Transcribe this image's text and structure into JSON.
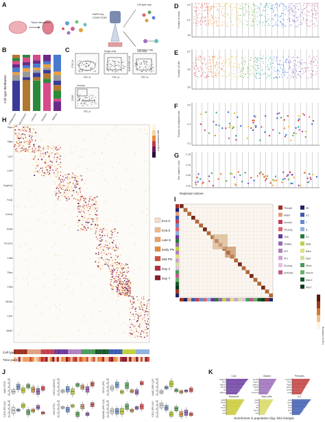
{
  "panels": {
    "A": {
      "label": "A",
      "annotations": [
        "Tissue dissociation",
        "MARS-seq",
        "CD45+/CD45−",
        "Cell-type map",
        "Interaction map"
      ]
    },
    "B": {
      "label": "B",
      "ylabel": "Cell type distribution",
      "categories": [
        "Collagenase",
        "Cold protease",
        "Liberase",
        "Elastase",
        "Miltenyi"
      ],
      "colors": [
        "#b07830",
        "#2a8a3a",
        "#d94a8a",
        "#6a2a8a",
        "#4a7ad0",
        "#f0a040",
        "#9a9a9a",
        "#3a3a9a"
      ]
    },
    "C": {
      "label": "C",
      "gates": [
        "Single cells",
        "Live cells",
        "Immune",
        "Non-immune"
      ],
      "axes": [
        "FSC-A",
        "FSC-W",
        "FSC-A",
        "DAPI/TER-119",
        "FSC-A",
        "CD45",
        "FSC-A"
      ]
    },
    "D": {
      "label": "D",
      "ylabel": "Number of reads",
      "ticks": [
        "10⁵",
        "10⁴",
        "10³"
      ]
    },
    "E": {
      "label": "E",
      "ylabel": "Number of UMI",
      "ticks": [
        "10⁴",
        "10³",
        "10²"
      ]
    },
    "F": {
      "label": "F",
      "ylabel": "Fraction of analyzed cells",
      "ticks": [
        "0.6",
        "0.4",
        "0.2"
      ]
    },
    "G": {
      "label": "G",
      "ylabel": "Est. ambient noise",
      "ticks": [
        "0.18",
        "0.10",
        "0.06",
        "0.02"
      ],
      "xlabel": "Replicate indices"
    },
    "H": {
      "label": "H",
      "colorbar": "Log normalized UMI",
      "row_labels": [
        "Sftpc",
        "Sftpb",
        "Lyz2",
        "Cd74",
        "Scgb1a1",
        "Foxj1",
        "Col1a1",
        "Acta2",
        "Pecam1",
        "Cdh5",
        "Ptprc",
        "Cd3e",
        "Ms4a1",
        "Csf1r",
        "Mki67"
      ],
      "legend_bottom": [
        "Cell type",
        "Time point"
      ]
    },
    "timepoints": [
      {
        "label": "E12.5",
        "color": "#f7dcc8"
      },
      {
        "label": "E16.5",
        "color": "#f2b98a"
      },
      {
        "label": "Late E",
        "color": "#eca060"
      },
      {
        "label": "Early PN",
        "color": "#e88a3a"
      },
      {
        "label": "Mid PN",
        "color": "#d1503a"
      },
      {
        "label": "Day 2",
        "color": "#b32a3a"
      },
      {
        "label": "Day 7",
        "color": "#8a1a2a"
      }
    ],
    "I": {
      "label": "I",
      "colorbar": "Log co-clustering",
      "legend": [
        {
          "label": "Pericyte",
          "color": "#a03020"
        },
        {
          "label": "NK",
          "color": "#222266"
        },
        {
          "label": "Matrix",
          "color": "#e0a080"
        },
        {
          "label": "ILC",
          "color": "#3a5ab0"
        },
        {
          "label": "Smooth",
          "color": "#c04050"
        },
        {
          "label": "T",
          "color": "#6a8ad0"
        },
        {
          "label": "Fib prog",
          "color": "#e06070"
        },
        {
          "label": "B",
          "color": "#90b0e0"
        },
        {
          "label": "Club",
          "color": "#6a3a9a"
        },
        {
          "label": "DC",
          "color": "#2a7a3a"
        },
        {
          "label": "Ciliated",
          "color": "#9a6ab0"
        },
        {
          "label": "Mast",
          "color": "#c0d040"
        },
        {
          "label": "AT2",
          "color": "#b080c0"
        },
        {
          "label": "Baso",
          "color": "#e0e080"
        },
        {
          "label": "AT1",
          "color": "#d0a0d0"
        },
        {
          "label": "Neut",
          "color": "#d0e0a0"
        },
        {
          "label": "Ep prog",
          "color": "#e0c0e0"
        },
        {
          "label": "Mono",
          "color": "#4a9a5a"
        },
        {
          "label": "Endothel",
          "color": "#c05a8a"
        },
        {
          "label": "Mac-III",
          "color": "#6ab06a"
        },
        {
          "label": "",
          "color": "#ffffff"
        },
        {
          "label": "Mac-II",
          "color": "#1a5a2a"
        },
        {
          "label": "",
          "color": "#ffffff"
        },
        {
          "label": "Mac-I",
          "color": "#0a3a1a"
        }
      ]
    },
    "J": {
      "label": "J",
      "plots": [
        {
          "ylabel": "Ly6C (FITC)",
          "ticks": [
            "5",
            "4",
            "3",
            "2",
            "1"
          ]
        },
        {
          "ylabel": "CD11b (BV605)",
          "ticks": [
            "5",
            "4",
            "3",
            "2",
            "1"
          ]
        },
        {
          "ylabel": "CD11c (PE)",
          "ticks": [
            "5",
            "4",
            "3",
            "2",
            "1"
          ]
        },
        {
          "ylabel": "Ly6G (APC Cy7)",
          "ticks": [
            "5",
            "4",
            "3",
            "2",
            "1"
          ]
        },
        {
          "ylabel": "CD19 (PE Cy7)",
          "ticks": [
            "5",
            "4",
            "3",
            "2",
            "1"
          ]
        },
        {
          "ylabel": "CD3 (FITC)",
          "ticks": [
            "5",
            "4",
            "3",
            "2",
            "1"
          ]
        },
        {
          "ylabel": "EpCAM (APC Cy7)",
          "ticks": [
            "5",
            "4",
            "3",
            "2",
            "1"
          ]
        },
        {
          "ylabel": "CD31 (PE Cy7)",
          "ticks": [
            "5",
            "4",
            "3",
            "2",
            "1"
          ]
        }
      ]
    },
    "K": {
      "label": "K",
      "xlabel": "Enrichment in population (log, fold change)",
      "groups": [
        {
          "title": "Club",
          "subtitle": "(1.3% of non-immune)",
          "color": "#6a3aa0",
          "genes": [
            "Scgb1a1",
            "Scgb3a2",
            "Cbr2",
            "Cyp2f2",
            "Aldh1a7",
            "Wfdc2",
            "Cldn10",
            "Chad",
            "Hp",
            "Bpifa1",
            "Aldh1a1",
            "Selenbp1"
          ],
          "values": [
            5.6,
            5.3,
            5.0,
            4.8,
            4.6,
            4.3,
            4.1,
            3.9,
            3.6,
            3.4,
            3.1,
            2.8
          ],
          "ticks": [
            "0",
            "3",
            "6"
          ]
        },
        {
          "title": "Ciliated",
          "subtitle": "(0.53% of non-immune)",
          "color": "#9a6ab8",
          "genes": [
            "Sec14l3",
            "Ccdc153",
            "Cyp2s1",
            "Cdhr3",
            "Aldh1a1",
            "AU040972",
            "Tubb4b",
            "Hspa4",
            "Foxj1",
            "Gstm1",
            "Tmem212",
            "Chchd10"
          ],
          "values": [
            4.4,
            4.2,
            4.0,
            3.8,
            3.6,
            3.4,
            3.2,
            3.0,
            2.8,
            2.6,
            2.4,
            2.2
          ],
          "ticks": [
            "0",
            "2",
            "4"
          ]
        },
        {
          "title": "Pericytes",
          "subtitle": "(0.91% of non-immune)",
          "color": "#c03a3a",
          "genes": [
            "Gucy1a3",
            "Pde5a",
            "Postn",
            "Gucy1b3",
            "Pdgfrb",
            "Higd1b",
            "Notch3",
            "Gpr126",
            "Cox4i2",
            "Nrgn",
            "Kcnj8",
            "Ndufa4l2"
          ],
          "values": [
            4.6,
            4.4,
            4.2,
            4.0,
            3.8,
            3.6,
            3.4,
            3.2,
            3.0,
            2.8,
            2.6,
            2.4
          ],
          "ticks": [
            "0",
            "2",
            "4"
          ]
        },
        {
          "title": "Basophils",
          "subtitle": "(1.53% of immune)",
          "color": "#c8c830",
          "genes": [
            "Mcpt8",
            "Cd200r3",
            "Prss34",
            "Ifitm1",
            "Hdc",
            "Cyp11a1",
            "Fcer1a",
            "Gata2",
            "Ccl3",
            "Il6",
            "Ccl4",
            "Ly6a"
          ],
          "values": [
            4.6,
            4.4,
            4.2,
            4.0,
            3.8,
            3.6,
            3.4,
            3.2,
            3.0,
            2.8,
            2.6,
            2.4
          ],
          "ticks": [
            "0",
            "2",
            "4"
          ]
        },
        {
          "title": "Mast cells",
          "subtitle": "(1.44% of immune)",
          "color": "#d8d860",
          "genes": [
            "Cpa3",
            "Mcpt4",
            "Cma1",
            "Tpsb2",
            "Kit",
            "Cd63",
            "Hdc",
            "Cyp11a1",
            "Fcer1a",
            "Gata2",
            "Ctsg",
            "Il1rl1"
          ],
          "values": [
            3.6,
            3.4,
            3.2,
            3.0,
            2.8,
            2.6,
            2.4,
            2.2,
            2.0,
            1.8,
            1.6,
            1.4
          ],
          "ticks": [
            "0",
            "2",
            "4"
          ]
        },
        {
          "title": "ILC",
          "subtitle": "(1.9% of immune)",
          "color": "#3a5ab0",
          "genes": [
            "Areg",
            "Il13",
            "Calca",
            "Klrg1",
            "Rora",
            "Gata3",
            "Arg1",
            "Icos",
            "Il1rl1",
            "Thy1",
            "Ltb",
            "Il7r"
          ],
          "values": [
            4.8,
            4.5,
            4.2,
            4.0,
            3.8,
            3.5,
            3.3,
            3.0,
            2.8,
            2.6,
            2.3,
            2.0
          ],
          "ticks": [
            "0",
            "2",
            "4",
            "6"
          ]
        }
      ]
    }
  }
}
